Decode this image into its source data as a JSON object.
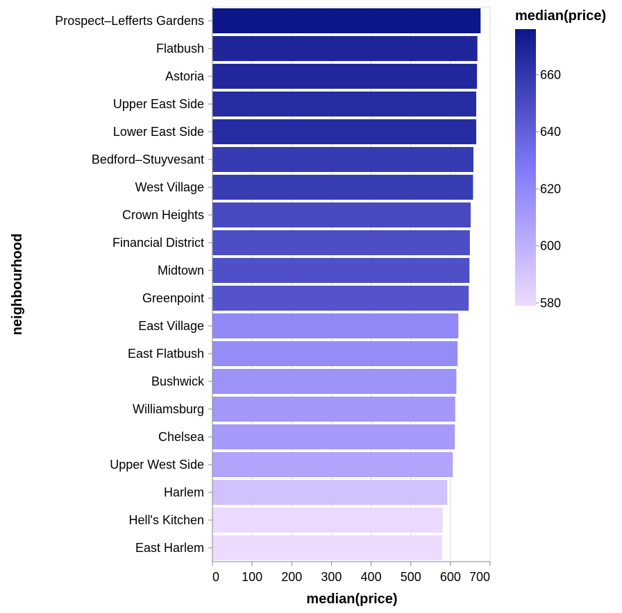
{
  "chart_data": {
    "type": "bar",
    "orientation": "horizontal",
    "xlabel": "median(price)",
    "ylabel": "neighbourhood",
    "xlim": [
      0,
      700
    ],
    "x_ticks": [
      0,
      100,
      200,
      300,
      400,
      500,
      600,
      700
    ],
    "grid": true,
    "categories": [
      "Prospect–Lefferts Gardens",
      "Flatbush",
      "Astoria",
      "Upper East Side",
      "Lower East Side",
      "Bedford–Stuyvesant",
      "West Village",
      "Crown Heights",
      "Financial District",
      "Midtown",
      "Greenpoint",
      "East Village",
      "East Flatbush",
      "Bushwick",
      "Williamsburg",
      "Chelsea",
      "Upper West Side",
      "Harlem",
      "Hell's Kitchen",
      "East Harlem"
    ],
    "values": [
      676,
      668,
      667,
      665,
      665,
      658,
      657,
      651,
      649,
      648,
      646,
      620,
      618,
      615,
      612,
      611,
      606,
      592,
      580,
      579
    ],
    "legend": {
      "title": "median(price)",
      "placement": "top-right",
      "ticks": [
        660,
        640,
        620,
        600,
        580
      ],
      "domain": [
        579,
        676
      ],
      "gradient_colors": [
        "#eedbff",
        "#8079f6",
        "#0c1688"
      ]
    }
  }
}
